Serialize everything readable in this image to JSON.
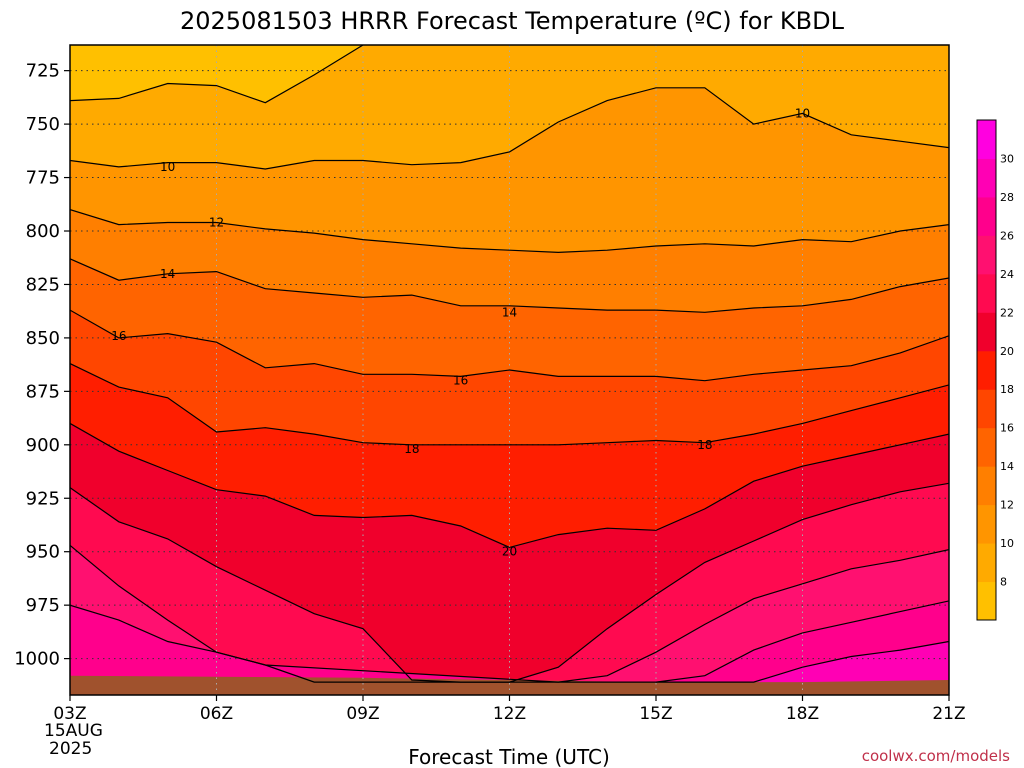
{
  "title": "2025081503 HRRR Forecast Temperature (ºC) for KBDL",
  "credit": "coolwx.com/models",
  "colors": {
    "credit": "#c0304a",
    "ground": "#a0522d",
    "contour": "#000000",
    "gridline": "#333333"
  },
  "chart_data": {
    "type": "contour",
    "title": "2025081503 HRRR Forecast Temperature (ºC) for KBDL",
    "xlabel": "Forecast Time (UTC)",
    "ylabel": "",
    "x_ticks": [
      "03Z",
      "06Z",
      "09Z",
      "12Z",
      "15Z",
      "18Z",
      "21Z"
    ],
    "x_first_tick_date": [
      "15AUG",
      "2025"
    ],
    "xlim": [
      3,
      21
    ],
    "y_ticks": [
      725,
      750,
      775,
      800,
      825,
      850,
      875,
      900,
      925,
      950,
      975,
      1000
    ],
    "ylim": [
      1017,
      713
    ],
    "y_axis_note": "pressure (hPa), increasing downward",
    "grid": true,
    "colorbar": {
      "levels": [
        8,
        10,
        12,
        14,
        16,
        18,
        20,
        22,
        24,
        26,
        28,
        30
      ],
      "colors": [
        "#ffc000",
        "#ffaa00",
        "#ff9500",
        "#ff7f00",
        "#ff6400",
        "#ff4600",
        "#ff1e00",
        "#f0002c",
        "#ff0a50",
        "#ff1070",
        "#ff008c",
        "#ff00b4",
        "#ff00e0"
      ],
      "placement": "right"
    },
    "contour_labels": [
      {
        "hour": 5.0,
        "p": 770,
        "text": "10"
      },
      {
        "hour": 18.0,
        "p": 745,
        "text": "10"
      },
      {
        "hour": 6.0,
        "p": 796,
        "text": "12"
      },
      {
        "hour": 5.0,
        "p": 820,
        "text": "14"
      },
      {
        "hour": 12.0,
        "p": 838,
        "text": "14"
      },
      {
        "hour": 4.0,
        "p": 849,
        "text": "16"
      },
      {
        "hour": 11.0,
        "p": 870,
        "text": "16"
      },
      {
        "hour": 10.0,
        "p": 902,
        "text": "18"
      },
      {
        "hour": 16.0,
        "p": 900,
        "text": "18"
      },
      {
        "hour": 12.0,
        "p": 950,
        "text": "20"
      }
    ],
    "isotherms": [
      {
        "value": 8,
        "points": [
          [
            3,
            739
          ],
          [
            4,
            738
          ],
          [
            5,
            731
          ],
          [
            6,
            732
          ],
          [
            7,
            740
          ],
          [
            8,
            727
          ],
          [
            9,
            713
          ]
        ]
      },
      {
        "value": 10,
        "points": [
          [
            3,
            767
          ],
          [
            4,
            770
          ],
          [
            5,
            768
          ],
          [
            6,
            768
          ],
          [
            7,
            771
          ],
          [
            8,
            767
          ],
          [
            9,
            767
          ],
          [
            10,
            769
          ],
          [
            11,
            768
          ],
          [
            12,
            763
          ],
          [
            13,
            749
          ],
          [
            14,
            739
          ],
          [
            15,
            733
          ],
          [
            16,
            733
          ],
          [
            17,
            750
          ],
          [
            18,
            745
          ],
          [
            19,
            755
          ],
          [
            20,
            758
          ],
          [
            21,
            761
          ]
        ]
      },
      {
        "value": 12,
        "points": [
          [
            3,
            790
          ],
          [
            4,
            797
          ],
          [
            5,
            796
          ],
          [
            6,
            796
          ],
          [
            7,
            799
          ],
          [
            8,
            801
          ],
          [
            9,
            804
          ],
          [
            10,
            806
          ],
          [
            11,
            808
          ],
          [
            12,
            809
          ],
          [
            13,
            810
          ],
          [
            14,
            809
          ],
          [
            15,
            807
          ],
          [
            16,
            806
          ],
          [
            17,
            807
          ],
          [
            18,
            804
          ],
          [
            19,
            805
          ],
          [
            20,
            800
          ],
          [
            21,
            797
          ]
        ]
      },
      {
        "value": 14,
        "points": [
          [
            3,
            813
          ],
          [
            4,
            823
          ],
          [
            5,
            820
          ],
          [
            6,
            819
          ],
          [
            7,
            827
          ],
          [
            8,
            829
          ],
          [
            9,
            831
          ],
          [
            10,
            830
          ],
          [
            11,
            835
          ],
          [
            12,
            835
          ],
          [
            13,
            836
          ],
          [
            14,
            837
          ],
          [
            15,
            837
          ],
          [
            16,
            838
          ],
          [
            17,
            836
          ],
          [
            18,
            835
          ],
          [
            19,
            832
          ],
          [
            20,
            826
          ],
          [
            21,
            822
          ]
        ]
      },
      {
        "value": 16,
        "points": [
          [
            3,
            837
          ],
          [
            4,
            850
          ],
          [
            5,
            848
          ],
          [
            6,
            852
          ],
          [
            7,
            864
          ],
          [
            8,
            862
          ],
          [
            9,
            867
          ],
          [
            10,
            867
          ],
          [
            11,
            868
          ],
          [
            12,
            865
          ],
          [
            13,
            868
          ],
          [
            14,
            868
          ],
          [
            15,
            868
          ],
          [
            16,
            870
          ],
          [
            17,
            867
          ],
          [
            18,
            865
          ],
          [
            19,
            863
          ],
          [
            20,
            857
          ],
          [
            21,
            849
          ]
        ]
      },
      {
        "value": 18,
        "points": [
          [
            3,
            862
          ],
          [
            4,
            873
          ],
          [
            5,
            878
          ],
          [
            6,
            894
          ],
          [
            7,
            892
          ],
          [
            8,
            895
          ],
          [
            9,
            899
          ],
          [
            10,
            900
          ],
          [
            11,
            900
          ],
          [
            12,
            900
          ],
          [
            13,
            900
          ],
          [
            14,
            899
          ],
          [
            15,
            898
          ],
          [
            16,
            899
          ],
          [
            17,
            895
          ],
          [
            18,
            890
          ],
          [
            19,
            884
          ],
          [
            20,
            878
          ],
          [
            21,
            872
          ]
        ]
      },
      {
        "value": 20,
        "points": [
          [
            3,
            890
          ],
          [
            4,
            903
          ],
          [
            5,
            912
          ],
          [
            6,
            921
          ],
          [
            7,
            924
          ],
          [
            8,
            933
          ],
          [
            9,
            934
          ],
          [
            10,
            933
          ],
          [
            11,
            938
          ],
          [
            12,
            948
          ],
          [
            13,
            942
          ],
          [
            14,
            939
          ],
          [
            15,
            940
          ],
          [
            16,
            930
          ],
          [
            17,
            917
          ],
          [
            18,
            910
          ],
          [
            19,
            905
          ],
          [
            20,
            900
          ],
          [
            21,
            895
          ]
        ]
      },
      {
        "value": 22,
        "points": [
          [
            3,
            920
          ],
          [
            4,
            936
          ],
          [
            5,
            944
          ],
          [
            6,
            957
          ],
          [
            7,
            968
          ],
          [
            8,
            979
          ],
          [
            9,
            986
          ],
          [
            10,
            1010
          ],
          [
            11,
            1011
          ],
          [
            12,
            1011
          ],
          [
            13,
            1004
          ],
          [
            14,
            986
          ],
          [
            15,
            970
          ],
          [
            16,
            955
          ],
          [
            17,
            945
          ],
          [
            18,
            935
          ],
          [
            19,
            928
          ],
          [
            20,
            922
          ],
          [
            21,
            918
          ]
        ]
      },
      {
        "value": 24,
        "points": [
          [
            3,
            947
          ],
          [
            4,
            966
          ],
          [
            5,
            982
          ],
          [
            6,
            997
          ],
          [
            7,
            1003
          ],
          [
            8,
            1011
          ],
          [
            9,
            1011
          ],
          [
            11,
            1011
          ],
          [
            12,
            1011
          ],
          [
            13,
            1011
          ],
          [
            14,
            1008
          ],
          [
            15,
            997
          ],
          [
            16,
            984
          ],
          [
            17,
            972
          ],
          [
            18,
            965
          ],
          [
            19,
            958
          ],
          [
            20,
            954
          ],
          [
            21,
            949
          ]
        ]
      },
      {
        "value": 26,
        "points": [
          [
            3,
            975
          ],
          [
            4,
            982
          ],
          [
            5,
            992
          ],
          [
            6,
            997
          ],
          [
            7,
            1003
          ],
          [
            13,
            1011
          ],
          [
            14,
            1011
          ],
          [
            15,
            1011
          ],
          [
            16,
            1008
          ],
          [
            17,
            996
          ],
          [
            18,
            988
          ],
          [
            19,
            983
          ],
          [
            20,
            978
          ],
          [
            21,
            973
          ]
        ]
      },
      {
        "value": 28,
        "points": [
          [
            15,
            1011
          ],
          [
            16,
            1011
          ],
          [
            17,
            1011
          ],
          [
            18,
            1004
          ],
          [
            19,
            999
          ],
          [
            20,
            996
          ],
          [
            21,
            992
          ]
        ]
      }
    ],
    "ground_surface": [
      [
        3,
        1008
      ],
      [
        9,
        1009
      ],
      [
        12,
        1010
      ],
      [
        15,
        1011
      ],
      [
        18,
        1011
      ],
      [
        21,
        1010
      ]
    ]
  }
}
